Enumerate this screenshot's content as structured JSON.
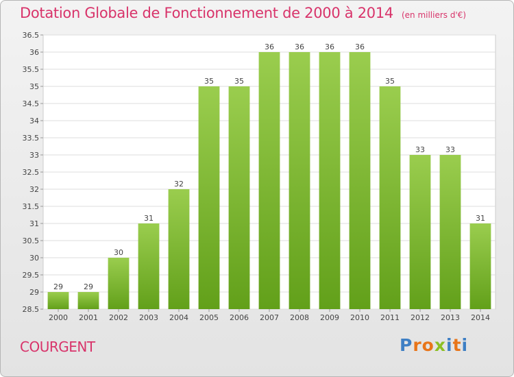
{
  "header": {
    "title": "Dotation Globale de Fonctionnement de 2000 à 2014",
    "subtitle": "(en milliers d'€)"
  },
  "footer": {
    "commune": "COURGENT",
    "logo": "Proxiti",
    "logo_colors": [
      "#3e7fc4",
      "#e8751a",
      "#e8751a",
      "#8cbf24",
      "#3e7fc4",
      "#e8751a",
      "#3e7fc4"
    ]
  },
  "chart_data": {
    "type": "bar",
    "categories": [
      "2000",
      "2001",
      "2002",
      "2003",
      "2004",
      "2005",
      "2006",
      "2007",
      "2008",
      "2009",
      "2010",
      "2011",
      "2012",
      "2013",
      "2014"
    ],
    "values": [
      29,
      29,
      30,
      31,
      32,
      35,
      35,
      36,
      36,
      36,
      36,
      35,
      33,
      33,
      31
    ],
    "yticks": [
      "28.5",
      "29",
      "29.5",
      "30",
      "30.5",
      "31",
      "31.5",
      "32",
      "32.5",
      "33",
      "33.5",
      "34",
      "34.5",
      "35",
      "35.5",
      "36",
      "36.5"
    ],
    "ylim": [
      28.5,
      36.5
    ],
    "grid": true,
    "bar_color_top": "#9acd4e",
    "bar_color_bottom": "#62a01a"
  }
}
